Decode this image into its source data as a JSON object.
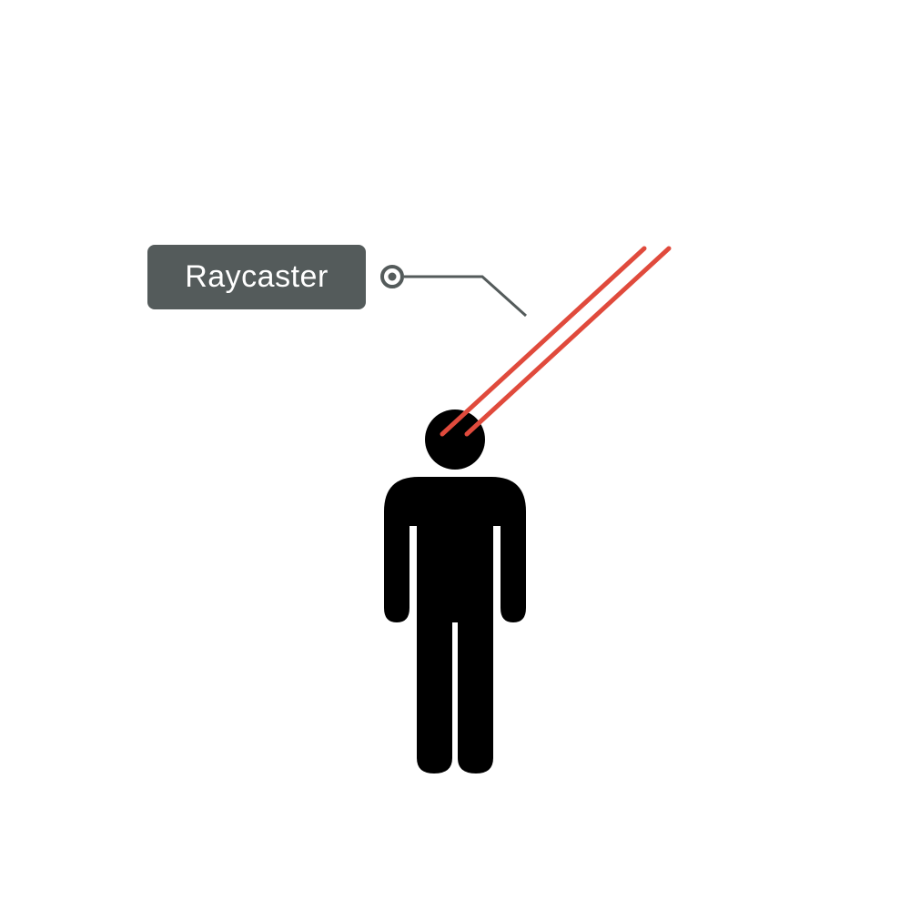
{
  "diagram": {
    "label": "Raycaster",
    "icons": {
      "anchor": "target-icon",
      "figure": "person-icon"
    },
    "colors": {
      "label_background": "#545b5b",
      "label_text": "#ffffff",
      "leader_line": "#545b5b",
      "rays": "#e04a3c",
      "figure": "#000000",
      "background": "#ffffff"
    }
  }
}
